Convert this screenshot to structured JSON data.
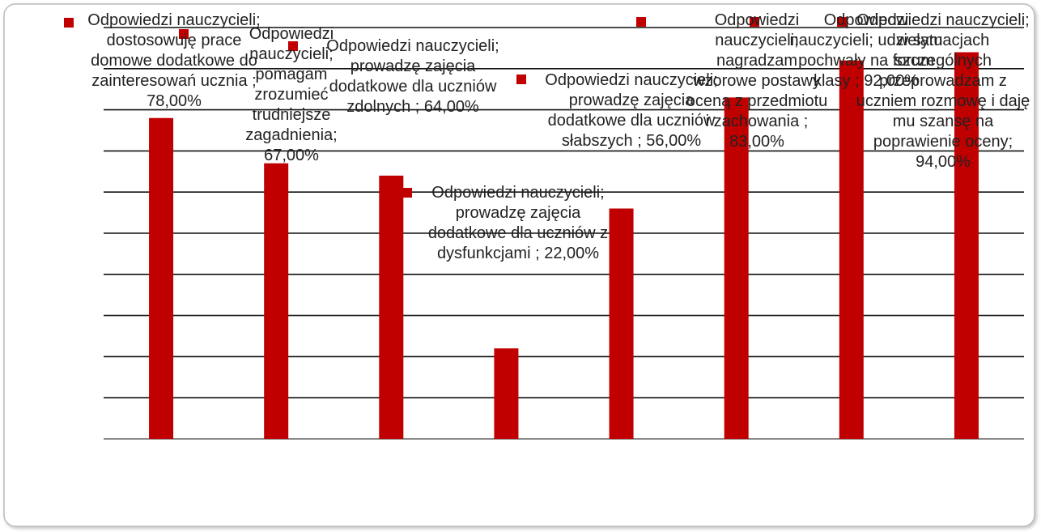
{
  "chart_data": {
    "type": "bar",
    "values": [
      78,
      67,
      64,
      22,
      56,
      83,
      92,
      94
    ],
    "value_labels": [
      "Odpowiedzi nauczycieli; dostosowuję prace domowe dodatkowe do zainteresowań ucznia ; 78,00%",
      "Odpowiedzi nauczycieli; pomagam zrozumieć trudniejsze zagadnienia; 67,00%",
      "Odpowiedzi nauczycieli; prowadzę zajęcia dodatkowe dla uczniów zdolnych ; 64,00%",
      "Odpowiedzi nauczycieli; prowadzę zajęcia dodatkowe dla uczniów z dysfunkcjami ; 22,00%",
      "Odpowiedzi nauczycieli; prowadzę zajęcia dodatkowe dla uczniów słabszych ; 56,00%",
      "Odpowiedzi nauczycieli; nagradzam wzorowe postawy oceną z przedmiotu i zachowania ; 83,00%",
      "Odpowiedzi nauczycieli; udzielam pochwały na forum klasy ; 92,00%",
      "Odpowiedzi nauczycieli; w sytuacjach szczególnych przeprowadzam z uczniem rozmowę i daję mu szansę na poprawienie oceny; 94,00%"
    ],
    "color": "#c00000",
    "ylim": [
      0,
      100
    ],
    "yticks": [
      0,
      10,
      20,
      30,
      40,
      50,
      60,
      70,
      80,
      90,
      100
    ],
    "grid": true
  }
}
